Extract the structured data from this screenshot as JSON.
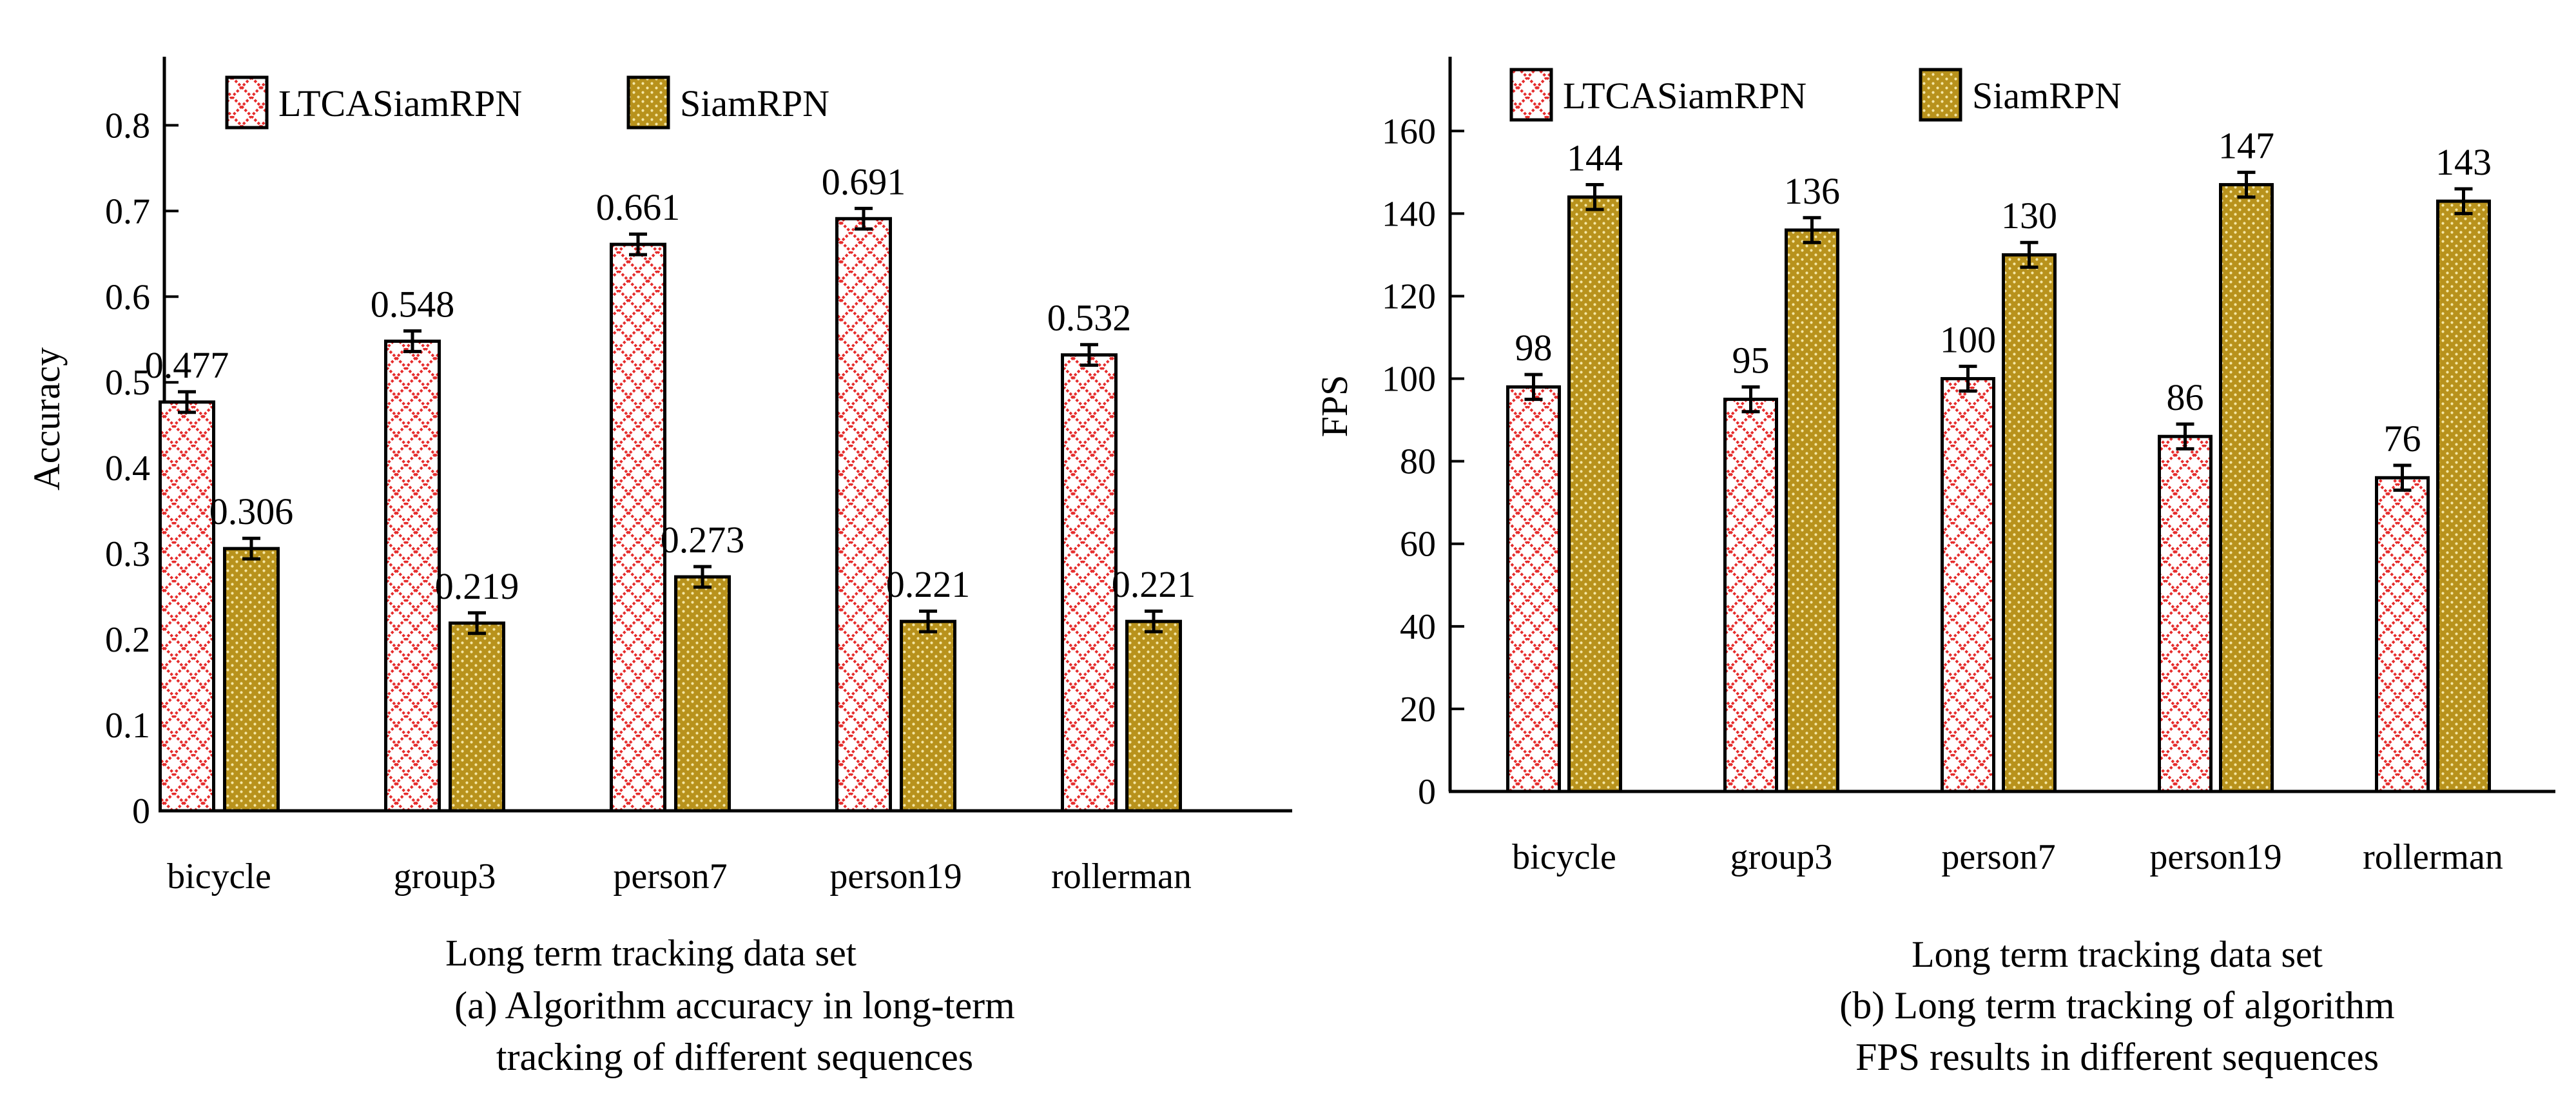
{
  "chart_data": [
    {
      "id": "a",
      "type": "bar",
      "categories": [
        "bicycle",
        "group3",
        "person7",
        "person19",
        "rollerman"
      ],
      "series": [
        {
          "name": "LTCASiamRPN",
          "values": [
            0.477,
            0.548,
            0.661,
            0.691,
            0.532
          ],
          "value_labels": [
            "0.477",
            "0.548",
            "0.661",
            "0.691",
            "0.532"
          ]
        },
        {
          "name": "SiamRPN",
          "values": [
            0.306,
            0.219,
            0.273,
            0.221,
            0.221
          ],
          "value_labels": [
            "0.306",
            "0.219",
            "0.273",
            "0.221",
            "0.221"
          ]
        }
      ],
      "error": 0.012,
      "ylim": [
        0,
        0.88
      ],
      "yticks": [
        0,
        0.1,
        0.2,
        0.3,
        0.4,
        0.5,
        0.6,
        0.7,
        0.8
      ],
      "ytick_labels": [
        "0",
        "0.1",
        "0.2",
        "0.3",
        "0.4",
        "0.5",
        "0.6",
        "0.7",
        "0.8"
      ],
      "ylabel": "Accuracy",
      "xlabel": "Long term tracking data set",
      "caption_lines": [
        "(a) Algorithm accuracy in long-term",
        "tracking of different sequences"
      ],
      "legend_position": "top"
    },
    {
      "id": "b",
      "type": "bar",
      "categories": [
        "bicycle",
        "group3",
        "person7",
        "person19",
        "rollerman"
      ],
      "series": [
        {
          "name": "LTCASiamRPN",
          "values": [
            98,
            95,
            100,
            86,
            76
          ],
          "value_labels": [
            "98",
            "95",
            "100",
            "86",
            "76"
          ]
        },
        {
          "name": "SiamRPN",
          "values": [
            144,
            136,
            130,
            147,
            143
          ],
          "value_labels": [
            "144",
            "136",
            "130",
            "147",
            "143"
          ]
        }
      ],
      "error": 3,
      "ylim": [
        0,
        178
      ],
      "yticks": [
        0,
        20,
        40,
        60,
        80,
        100,
        120,
        140,
        160
      ],
      "ytick_labels": [
        "0",
        "20",
        "40",
        "60",
        "80",
        "100",
        "120",
        "140",
        "160"
      ],
      "ylabel": "FPS",
      "xlabel": "Long term tracking data set",
      "caption_lines": [
        "(b) Long term tracking of algorithm",
        "FPS results in different sequences"
      ],
      "legend_position": "top"
    }
  ],
  "colors": {
    "series_a": "#e52b2b",
    "series_b_fill": "#b8921c",
    "series_b_dot": "#f4e7a6",
    "axis": "#000000"
  }
}
